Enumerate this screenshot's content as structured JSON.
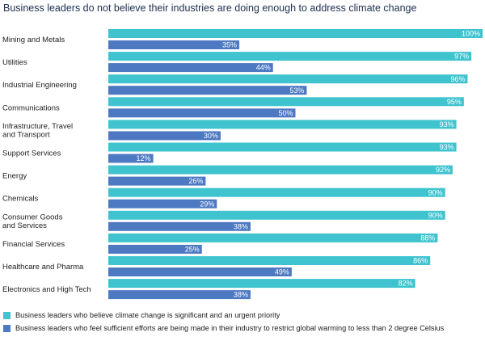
{
  "chart_data": {
    "type": "bar",
    "orientation": "horizontal",
    "title": "Business leaders do not believe their industries are doing enough to address climate change",
    "categories": [
      [
        "Mining and Metals"
      ],
      [
        "Utilities"
      ],
      [
        "Industrial Engineering"
      ],
      [
        "Communications"
      ],
      [
        "Infrastructure, Travel",
        "and Transport"
      ],
      [
        "Support Services"
      ],
      [
        "Energy"
      ],
      [
        "Chemicals"
      ],
      [
        "Consumer Goods",
        "and Services"
      ],
      [
        "Financial Services"
      ],
      [
        "Healthcare and Pharma"
      ],
      [
        "Electronics and High Tech"
      ]
    ],
    "series": [
      {
        "name": "Business leaders who believe climate change is significant and an urgent priority",
        "color": "#3fc4cf",
        "values": [
          100,
          97,
          96,
          95,
          93,
          93,
          92,
          90,
          90,
          88,
          86,
          82
        ]
      },
      {
        "name": "Business leaders who feel sufficient efforts are being made in their industry to restrict global warming to less than 2 degree Celsius",
        "color": "#4d79c2",
        "values": [
          35,
          44,
          53,
          50,
          30,
          12,
          26,
          29,
          38,
          25,
          49,
          38
        ]
      }
    ],
    "value_suffix": "%",
    "xlim": [
      0,
      100
    ],
    "grid": false,
    "legend_position": "bottom-left"
  }
}
